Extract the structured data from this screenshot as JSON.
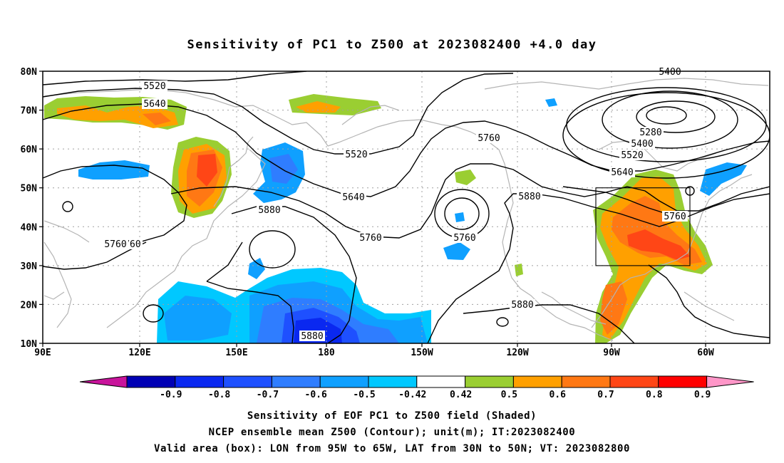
{
  "title": "Sensitivity of PC1 to Z500 at 2023082400 +4.0 day",
  "axes": {
    "lat_ticks": [
      "80N",
      "70N",
      "60N",
      "50N",
      "40N",
      "30N",
      "20N",
      "10N"
    ],
    "lon_ticks": [
      "90E",
      "120E",
      "150E",
      "180",
      "150W",
      "120W",
      "90W",
      "60W"
    ]
  },
  "contour_labels": [
    "5400",
    "5520",
    "5640",
    "5280",
    "5400",
    "5520",
    "5640",
    "5760",
    "5520",
    "5640",
    "5760",
    "5880",
    "5880",
    "5760",
    "5760",
    "5760",
    "5880",
    "5880",
    "5760"
  ],
  "colorbar": {
    "labels": [
      "-0.9",
      "-0.8",
      "-0.7",
      "-0.6",
      "-0.5",
      "-0.42",
      "0.42",
      "0.5",
      "0.6",
      "0.7",
      "0.8",
      "0.9"
    ],
    "colors": [
      "#0000b4",
      "#0a28f0",
      "#1e50ff",
      "#2f7dff",
      "#0fa0ff",
      "#00c8ff",
      "#ffffff",
      "#9ace32",
      "#ffa000",
      "#ff7814",
      "#ff4616",
      "#ff0000"
    ],
    "low_color": "#c8149b",
    "high_color": "#ff96c8"
  },
  "footer": {
    "line1": "Sensitivity of EOF PC1 to Z500 field (Shaded)",
    "line2": "NCEP ensemble mean Z500 (Contour); unit(m); IT:2023082400",
    "line3": "Valid area (box): LON from 95W to 65W, LAT from 30N to 50N; VT: 2023082800"
  },
  "colors": {
    "contour": "#000000",
    "coastline": "#b4b4b4",
    "grid": "#a0a0a0"
  }
}
